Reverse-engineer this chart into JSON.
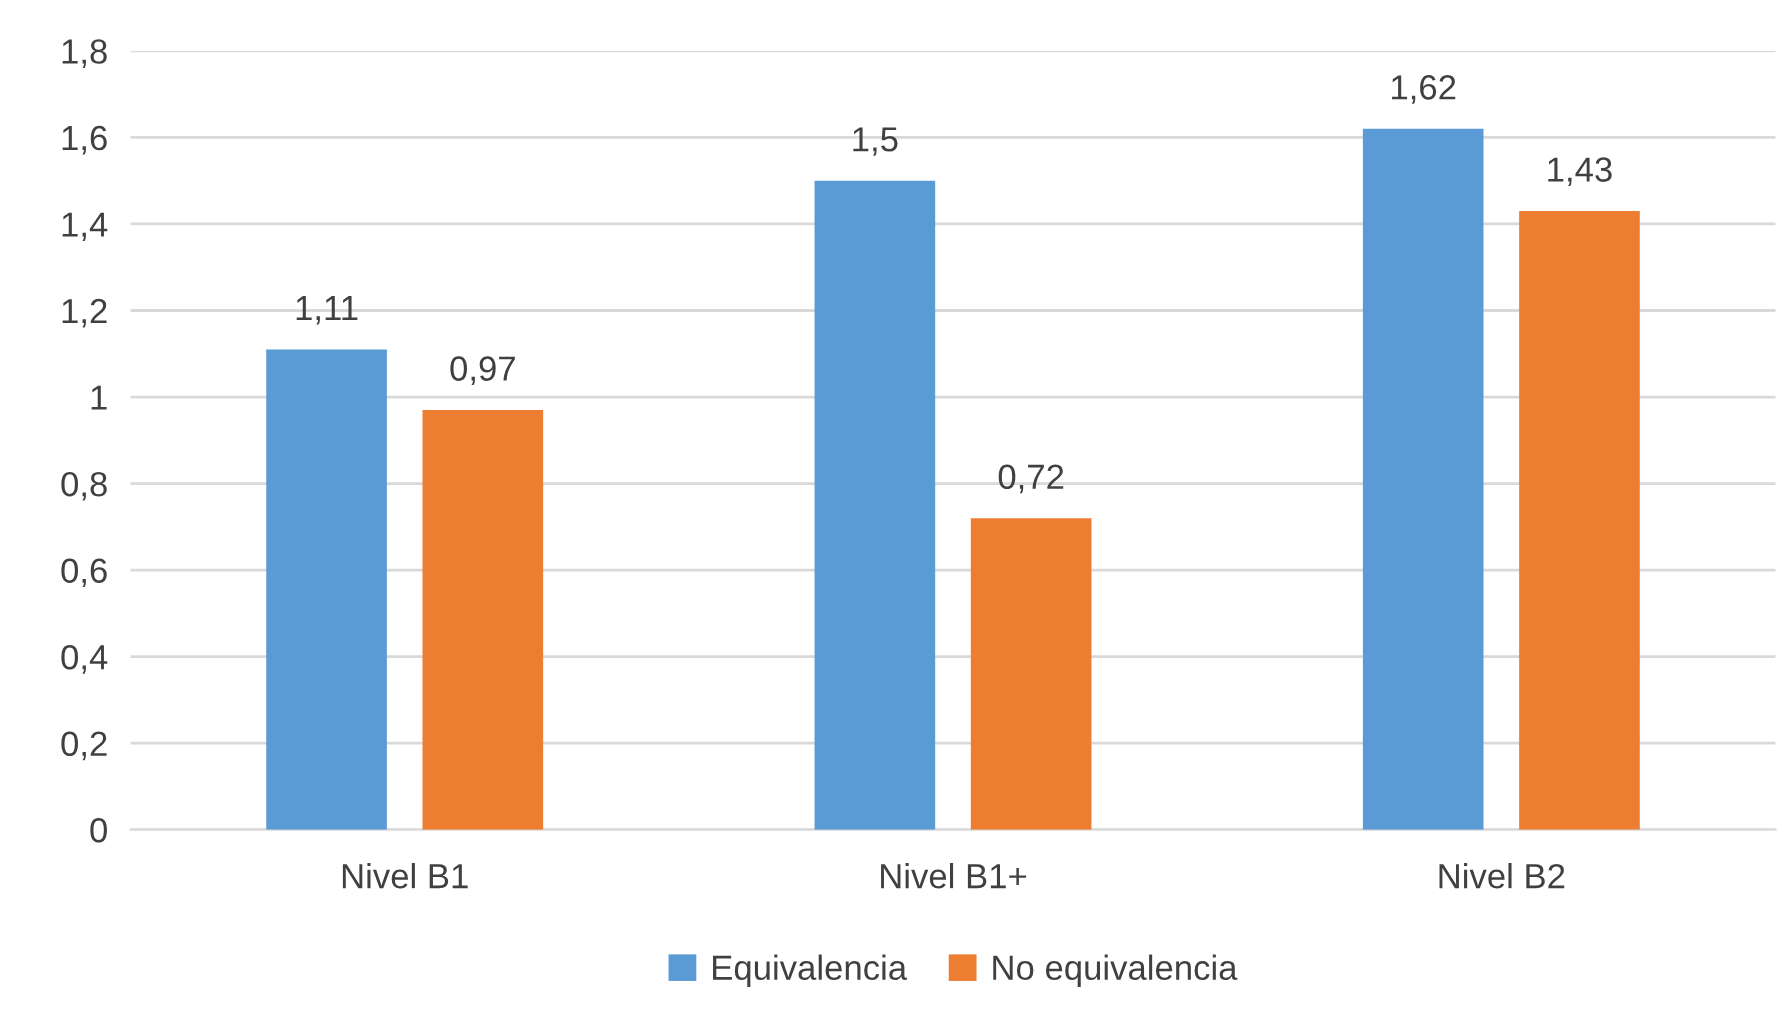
{
  "chart_data": {
    "type": "bar",
    "categories": [
      "Nivel B1",
      "Nivel B1+",
      "Nivel B2"
    ],
    "series": [
      {
        "name": "Equivalencia",
        "color": "#5b9bd5",
        "values": [
          1.11,
          1.5,
          1.62
        ],
        "value_labels": [
          "1,11",
          "1,5",
          "1,62"
        ]
      },
      {
        "name": "No equivalencia",
        "color": "#ed7d31",
        "values": [
          0.97,
          0.72,
          1.43
        ],
        "value_labels": [
          "0,97",
          "0,72",
          "1,43"
        ]
      }
    ],
    "ylim": [
      0,
      1.8
    ],
    "yticks": [
      0,
      {
        "value": 0.2,
        "label": "0,2"
      },
      {
        "value": 0.4,
        "label": "0,4"
      },
      {
        "value": 0.6,
        "label": "0,6"
      },
      {
        "value": 0.8,
        "label": "0,8"
      },
      1,
      {
        "value": 1.2,
        "label": "1,2"
      },
      {
        "value": 1.4,
        "label": "1,4"
      },
      {
        "value": 1.6,
        "label": "1,6"
      },
      {
        "value": 1.8,
        "label": "1,8"
      }
    ],
    "grid": "y",
    "legend": "bottom"
  }
}
